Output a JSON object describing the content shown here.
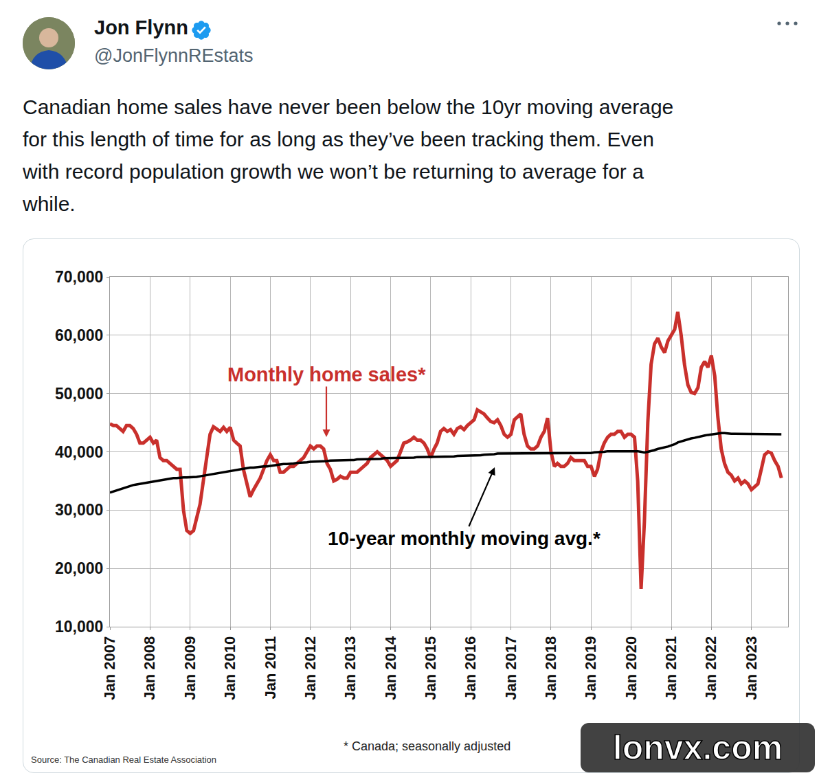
{
  "post": {
    "name": "Jon Flynn",
    "handle": "@JonFlynnREstats",
    "text_lines": [
      "Canadian home sales have never been below the 10yr moving average",
      "for this length of time for as long as they’ve been tracking them. Even",
      "with record population growth we won’t be returning to average for a",
      "while."
    ]
  },
  "chart_data": {
    "type": "line",
    "footnote": "* Canada; seasonally adjusted",
    "source": "Source: The Canadian Real Estate Association",
    "x": [
      "2007-01",
      "2007-02",
      "2007-03",
      "2007-04",
      "2007-05",
      "2007-06",
      "2007-07",
      "2007-08",
      "2007-09",
      "2007-10",
      "2007-11",
      "2007-12",
      "2008-01",
      "2008-02",
      "2008-03",
      "2008-04",
      "2008-05",
      "2008-06",
      "2008-07",
      "2008-08",
      "2008-09",
      "2008-10",
      "2008-11",
      "2008-12",
      "2009-01",
      "2009-02",
      "2009-03",
      "2009-04",
      "2009-05",
      "2009-06",
      "2009-07",
      "2009-08",
      "2009-09",
      "2009-10",
      "2009-11",
      "2009-12",
      "2010-01",
      "2010-02",
      "2010-03",
      "2010-04",
      "2010-05",
      "2010-06",
      "2010-07",
      "2010-08",
      "2010-09",
      "2010-10",
      "2010-11",
      "2010-12",
      "2011-01",
      "2011-02",
      "2011-03",
      "2011-04",
      "2011-05",
      "2011-06",
      "2011-07",
      "2011-08",
      "2011-09",
      "2011-10",
      "2011-11",
      "2011-12",
      "2012-01",
      "2012-02",
      "2012-03",
      "2012-04",
      "2012-05",
      "2012-06",
      "2012-07",
      "2012-08",
      "2012-09",
      "2012-10",
      "2012-11",
      "2012-12",
      "2013-01",
      "2013-02",
      "2013-03",
      "2013-04",
      "2013-05",
      "2013-06",
      "2013-07",
      "2013-08",
      "2013-09",
      "2013-10",
      "2013-11",
      "2013-12",
      "2014-01",
      "2014-02",
      "2014-03",
      "2014-04",
      "2014-05",
      "2014-06",
      "2014-07",
      "2014-08",
      "2014-09",
      "2014-10",
      "2014-11",
      "2014-12",
      "2015-01",
      "2015-02",
      "2015-03",
      "2015-04",
      "2015-05",
      "2015-06",
      "2015-07",
      "2015-08",
      "2015-09",
      "2015-10",
      "2015-11",
      "2015-12",
      "2016-01",
      "2016-02",
      "2016-03",
      "2016-04",
      "2016-05",
      "2016-06",
      "2016-07",
      "2016-08",
      "2016-09",
      "2016-10",
      "2016-11",
      "2016-12",
      "2017-01",
      "2017-02",
      "2017-03",
      "2017-04",
      "2017-05",
      "2017-06",
      "2017-07",
      "2017-08",
      "2017-09",
      "2017-10",
      "2017-11",
      "2017-12",
      "2018-01",
      "2018-02",
      "2018-03",
      "2018-04",
      "2018-05",
      "2018-06",
      "2018-07",
      "2018-08",
      "2018-09",
      "2018-10",
      "2018-11",
      "2018-12",
      "2019-01",
      "2019-02",
      "2019-03",
      "2019-04",
      "2019-05",
      "2019-06",
      "2019-07",
      "2019-08",
      "2019-09",
      "2019-10",
      "2019-11",
      "2019-12",
      "2020-01",
      "2020-02",
      "2020-03",
      "2020-04",
      "2020-05",
      "2020-06",
      "2020-07",
      "2020-08",
      "2020-09",
      "2020-10",
      "2020-11",
      "2020-12",
      "2021-01",
      "2021-02",
      "2021-03",
      "2021-04",
      "2021-05",
      "2021-06",
      "2021-07",
      "2021-08",
      "2021-09",
      "2021-10",
      "2021-11",
      "2021-12",
      "2022-01",
      "2022-02",
      "2022-03",
      "2022-04",
      "2022-05",
      "2022-06",
      "2022-07",
      "2022-08",
      "2022-09",
      "2022-10",
      "2022-11",
      "2022-12",
      "2023-01",
      "2023-02",
      "2023-03",
      "2023-04",
      "2023-05",
      "2023-06",
      "2023-07",
      "2023-08",
      "2023-09",
      "2023-10"
    ],
    "series": [
      {
        "name": "Monthly home sales*",
        "color": "#c9302c",
        "line_style": "solid",
        "values": [
          44800,
          44500,
          44500,
          44000,
          43500,
          44500,
          44500,
          44000,
          43000,
          41500,
          41500,
          42000,
          42500,
          41500,
          42000,
          39000,
          38500,
          38500,
          38000,
          37500,
          37000,
          37000,
          30000,
          26500,
          26000,
          26500,
          28500,
          31000,
          35000,
          39500,
          43000,
          44300,
          43800,
          43500,
          44200,
          43500,
          44200,
          42000,
          41500,
          41000,
          37000,
          34500,
          32300,
          33500,
          34500,
          35500,
          37000,
          38500,
          39500,
          38500,
          38500,
          36500,
          36500,
          37000,
          37500,
          37500,
          38000,
          38500,
          39000,
          40000,
          41000,
          40500,
          41000,
          41000,
          40500,
          38000,
          37000,
          35000,
          35300,
          35800,
          35500,
          35500,
          36500,
          36500,
          36500,
          37000,
          37500,
          38000,
          39000,
          39500,
          40000,
          39500,
          39000,
          38500,
          37500,
          38000,
          38500,
          40000,
          41500,
          41700,
          42000,
          42500,
          42000,
          42000,
          41500,
          40500,
          39000,
          40500,
          41500,
          43500,
          44000,
          43500,
          43800,
          43000,
          44000,
          44300,
          43800,
          44500,
          45000,
          45500,
          47200,
          46800,
          46500,
          45800,
          45200,
          45000,
          45500,
          44500,
          43000,
          42500,
          43000,
          45500,
          46000,
          46500,
          43000,
          41000,
          40500,
          40500,
          41000,
          42500,
          43500,
          45800,
          40000,
          37500,
          38000,
          37500,
          37500,
          38000,
          39000,
          38500,
          38500,
          38500,
          38500,
          37500,
          37500,
          35800,
          37000,
          40000,
          41500,
          42500,
          43000,
          43000,
          43500,
          43500,
          42500,
          43000,
          43000,
          42500,
          35000,
          16500,
          28000,
          45000,
          55000,
          58500,
          59500,
          58000,
          57000,
          59000,
          60000,
          61000,
          64000,
          60000,
          55000,
          51500,
          50200,
          50000,
          51000,
          54500,
          55500,
          54500,
          56500,
          53000,
          46000,
          40500,
          38000,
          36500,
          36000,
          35000,
          35500,
          34500,
          35000,
          34500,
          33500,
          34000,
          34500,
          37000,
          39500,
          40000,
          39800,
          38500,
          37500,
          35500
        ]
      },
      {
        "name": "10-year monthly moving avg.*",
        "color": "#000000",
        "line_style": "solid",
        "values": [
          33000,
          33200,
          33400,
          33600,
          33800,
          34000,
          34100,
          34300,
          34400,
          34500,
          34600,
          34700,
          34800,
          34900,
          35000,
          35100,
          35200,
          35300,
          35400,
          35500,
          35500,
          35600,
          35600,
          35600,
          35600,
          35700,
          35700,
          35800,
          35900,
          36000,
          36100,
          36200,
          36300,
          36400,
          36500,
          36600,
          36700,
          36800,
          36900,
          37000,
          37100,
          37200,
          37300,
          37300,
          37400,
          37400,
          37500,
          37500,
          37600,
          37700,
          37800,
          37800,
          37900,
          37900,
          38000,
          38000,
          38100,
          38100,
          38200,
          38200,
          38300,
          38300,
          38300,
          38400,
          38400,
          38400,
          38500,
          38500,
          38500,
          38500,
          38600,
          38600,
          38600,
          38600,
          38700,
          38700,
          38700,
          38700,
          38800,
          38800,
          38800,
          38800,
          38900,
          38900,
          38900,
          38900,
          38900,
          39000,
          39000,
          39000,
          39000,
          39000,
          39100,
          39100,
          39100,
          39100,
          39100,
          39100,
          39100,
          39200,
          39200,
          39200,
          39200,
          39200,
          39300,
          39300,
          39300,
          39300,
          39300,
          39400,
          39400,
          39400,
          39500,
          39500,
          39600,
          39600,
          39700,
          39700,
          39700,
          39800,
          39800,
          39800,
          39800,
          39800,
          39800,
          39800,
          39800,
          39800,
          39800,
          39800,
          39800,
          39800,
          39800,
          39800,
          39700,
          39700,
          39700,
          39700,
          39700,
          39700,
          39700,
          39800,
          39800,
          39800,
          39800,
          39900,
          39900,
          40000,
          40000,
          40100,
          40100,
          40200,
          40200,
          40200,
          40200,
          40200,
          40200,
          40200,
          40100,
          40000,
          39900,
          40000,
          40100,
          40300,
          40500,
          40600,
          40800,
          40900,
          41100,
          41300,
          41600,
          41800,
          42000,
          42100,
          42300,
          42400,
          42500,
          42600,
          42800,
          42900,
          43000,
          43100,
          43200,
          43200,
          43200,
          43100,
          43100,
          43100,
          43100,
          43100,
          43000,
          43000,
          43000,
          43000,
          43000,
          43000,
          43000,
          43000,
          43000,
          43000,
          43000,
          43000
        ]
      }
    ],
    "xlim": [
      "2007-01",
      "2023-12"
    ],
    "xticks": [
      {
        "value": "2007-01",
        "label": "Jan 2007"
      },
      {
        "value": "2008-01",
        "label": "Jan 2008"
      },
      {
        "value": "2009-01",
        "label": "Jan 2009"
      },
      {
        "value": "2010-01",
        "label": "Jan 2010"
      },
      {
        "value": "2011-01",
        "label": "Jan 2011"
      },
      {
        "value": "2012-01",
        "label": "Jan 2012"
      },
      {
        "value": "2013-01",
        "label": "Jan 2013"
      },
      {
        "value": "2014-01",
        "label": "Jan 2014"
      },
      {
        "value": "2015-01",
        "label": "Jan 2015"
      },
      {
        "value": "2016-01",
        "label": "Jan 2016"
      },
      {
        "value": "2017-01",
        "label": "Jan 2017"
      },
      {
        "value": "2018-01",
        "label": "Jan 2018"
      },
      {
        "value": "2019-01",
        "label": "Jan 2019"
      },
      {
        "value": "2020-01",
        "label": "Jan 2020"
      },
      {
        "value": "2021-01",
        "label": "Jan 2021"
      },
      {
        "value": "2022-01",
        "label": "Jan 2022"
      },
      {
        "value": "2023-01",
        "label": "Jan 2023"
      }
    ],
    "ylim": [
      10000,
      70000
    ],
    "yticks": [
      {
        "value": 10000,
        "label": "10,000"
      },
      {
        "value": 20000,
        "label": "20,000"
      },
      {
        "value": 30000,
        "label": "30,000"
      },
      {
        "value": 40000,
        "label": "40,000"
      },
      {
        "value": 50000,
        "label": "50,000"
      },
      {
        "value": 60000,
        "label": "60,000"
      },
      {
        "value": 70000,
        "label": "70,000"
      }
    ],
    "grid": true
  },
  "watermark": "lonvx.com"
}
